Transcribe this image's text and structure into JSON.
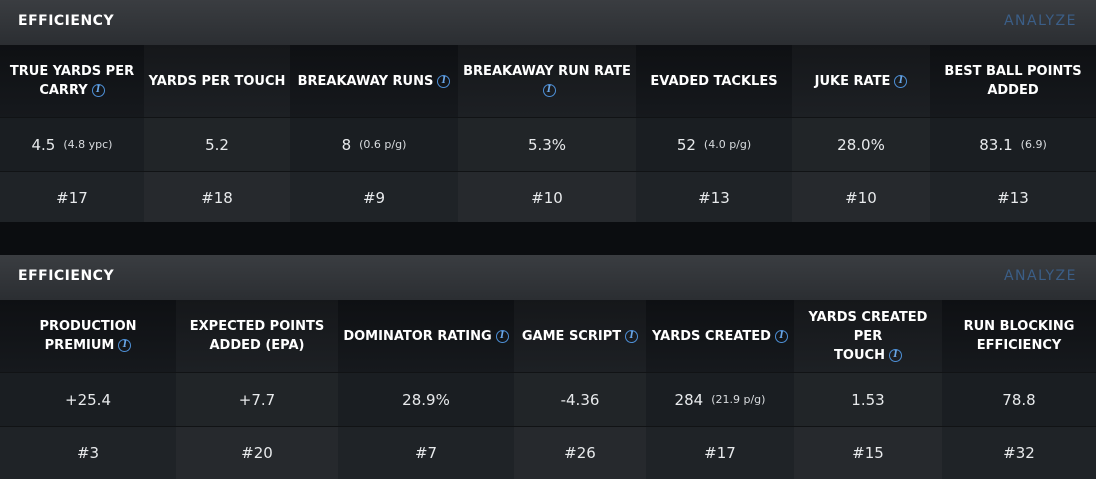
{
  "panels": [
    {
      "title": "EFFICIENCY",
      "action": "ANALYZE",
      "columns": [
        {
          "label_a": "TRUE YARDS PER",
          "label_b": "CARRY",
          "info": true,
          "value": "4.5",
          "sub": "(4.8 ypc)",
          "rank": "#17"
        },
        {
          "label_a": "YARDS PER TOUCH",
          "label_b": "",
          "info": false,
          "value": "5.2",
          "sub": "",
          "rank": "#18"
        },
        {
          "label_a": "BREAKAWAY RUNS",
          "label_b": "",
          "info": true,
          "value": "8",
          "sub": "(0.6 p/g)",
          "rank": "#9"
        },
        {
          "label_a": "BREAKAWAY RUN RATE",
          "label_b": "",
          "info": true,
          "value": "5.3%",
          "sub": "",
          "rank": "#10"
        },
        {
          "label_a": "EVADED TACKLES",
          "label_b": "",
          "info": false,
          "value": "52",
          "sub": "(4.0 p/g)",
          "rank": "#13"
        },
        {
          "label_a": "JUKE RATE",
          "label_b": "",
          "info": true,
          "value": "28.0%",
          "sub": "",
          "rank": "#10"
        },
        {
          "label_a": "BEST BALL POINTS",
          "label_b": "ADDED",
          "info": false,
          "value": "83.1",
          "sub": "(6.9)",
          "rank": "#13"
        }
      ]
    },
    {
      "title": "EFFICIENCY",
      "action": "ANALYZE",
      "columns": [
        {
          "label_a": "PRODUCTION PREMIUM",
          "label_b": "",
          "info": true,
          "value": "+25.4",
          "sub": "",
          "rank": "#3"
        },
        {
          "label_a": "EXPECTED POINTS",
          "label_b": "ADDED (EPA)",
          "info": false,
          "value": "+7.7",
          "sub": "",
          "rank": "#20"
        },
        {
          "label_a": "DOMINATOR RATING",
          "label_b": "",
          "info": true,
          "value": "28.9%",
          "sub": "",
          "rank": "#7"
        },
        {
          "label_a": "GAME SCRIPT",
          "label_b": "",
          "info": true,
          "value": "-4.36",
          "sub": "",
          "rank": "#26"
        },
        {
          "label_a": "YARDS CREATED",
          "label_b": "",
          "info": true,
          "value": "284",
          "sub": "(21.9 p/g)",
          "rank": "#17"
        },
        {
          "label_a": "YARDS CREATED PER",
          "label_b": "TOUCH",
          "info": true,
          "value": "1.53",
          "sub": "",
          "rank": "#15"
        },
        {
          "label_a": "RUN BLOCKING",
          "label_b": "EFFICIENCY",
          "info": false,
          "value": "78.8",
          "sub": "",
          "rank": "#32"
        }
      ]
    }
  ],
  "info_icon_glyph": "i",
  "colors": {
    "accent_link": "#3b5e87",
    "info_icon": "#4d8fd6"
  }
}
